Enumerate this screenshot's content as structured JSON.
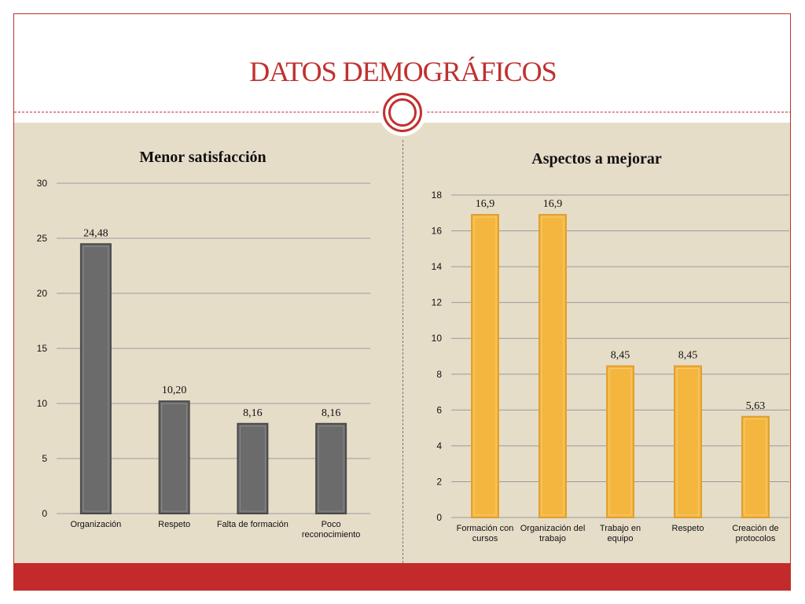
{
  "slide": {
    "title": "DATOS DEMOGRÁFICOS"
  },
  "colors": {
    "accent": "#c0312f",
    "background": "#e6ddc9",
    "left_bar": "#6b6b6b",
    "right_bar": "#f4b63f"
  },
  "chart_data": [
    {
      "type": "bar",
      "title": "Menor satisfacción",
      "categories": [
        "Organización",
        "Respeto",
        "Falta de formación",
        "Poco reconocimiento"
      ],
      "values": [
        24.48,
        10.2,
        8.16,
        8.16
      ],
      "value_labels": [
        "24,48",
        "10,20",
        "8,16",
        "8,16"
      ],
      "ylim": [
        0,
        30
      ],
      "yticks": [
        0,
        5,
        10,
        15,
        20,
        25,
        30
      ],
      "grid": true,
      "bar_color": "#6b6b6b"
    },
    {
      "type": "bar",
      "title": "Aspectos a mejorar",
      "categories": [
        "Formación con cursos",
        "Organización del trabajo",
        "Trabajo en equipo",
        "Respeto",
        "Creación de protocolos"
      ],
      "values": [
        16.9,
        16.9,
        8.45,
        8.45,
        5.63
      ],
      "value_labels": [
        "16,9",
        "16,9",
        "8,45",
        "8,45",
        "5,63"
      ],
      "ylim": [
        0,
        18
      ],
      "yticks": [
        0,
        2,
        4,
        6,
        8,
        10,
        12,
        14,
        16,
        18
      ],
      "grid": true,
      "bar_color": "#f4b63f"
    }
  ]
}
